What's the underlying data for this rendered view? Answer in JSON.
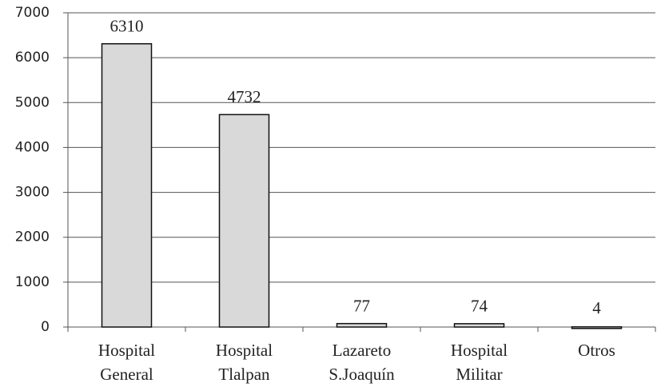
{
  "chart_data": {
    "type": "bar",
    "categories": [
      [
        "Hospital",
        "General"
      ],
      [
        "Hospital",
        "Tlalpan"
      ],
      [
        "Lazareto",
        "S.Joaquín"
      ],
      [
        "Hospital",
        "Militar"
      ],
      [
        "Otros"
      ]
    ],
    "values": [
      6310,
      4732,
      77,
      74,
      4
    ],
    "color": "#d9d9d9",
    "ylim": [
      0,
      7000
    ],
    "yticks": [
      0,
      1000,
      2000,
      3000,
      4000,
      5000,
      6000,
      7000
    ],
    "grid": true
  }
}
